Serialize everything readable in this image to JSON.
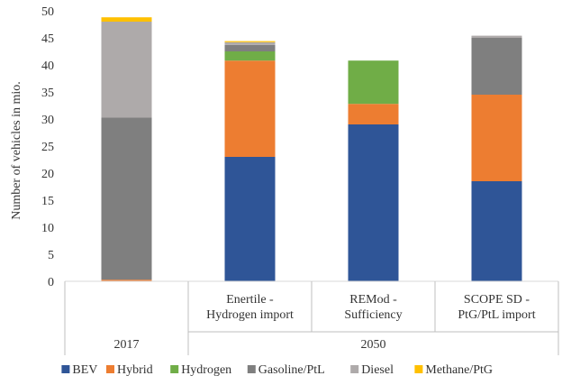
{
  "chart_data": {
    "type": "bar",
    "stacked": true,
    "ylabel": "Number of vehicles in mio.",
    "ylim": [
      0,
      50
    ],
    "yticks": [
      0,
      5,
      10,
      15,
      20,
      25,
      30,
      35,
      40,
      45,
      50
    ],
    "grid": false,
    "legend_position": "bottom",
    "groups": [
      {
        "label": "2017",
        "categories": [
          ""
        ]
      },
      {
        "label": "2050",
        "categories": [
          "Enertile -|Hydrogen import",
          "REMod -|Sufficiency",
          "SCOPE SD -|PtG/PtL import"
        ]
      }
    ],
    "categories": [
      "",
      "Enertile - Hydrogen import",
      "REMod - Sufficiency",
      "SCOPE SD - PtG/PtL import"
    ],
    "series": [
      {
        "name": "BEV",
        "color": "#2F5597",
        "values": [
          0,
          23,
          29,
          18.5
        ]
      },
      {
        "name": "Hybrid",
        "color": "#ED7D31",
        "values": [
          0.3,
          17.8,
          3.8,
          16
        ]
      },
      {
        "name": "Hydrogen",
        "color": "#70AD47",
        "values": [
          0,
          1.7,
          8,
          0
        ]
      },
      {
        "name": "Gasoline/PtL",
        "color": "#7F7F7F",
        "values": [
          30,
          1.2,
          0,
          10.5
        ]
      },
      {
        "name": "Diesel",
        "color": "#AEAAAA",
        "values": [
          17.7,
          0.5,
          0,
          0.4
        ]
      },
      {
        "name": "Methane/PtG",
        "color": "#FFC000",
        "values": [
          0.8,
          0.2,
          0,
          0
        ]
      }
    ]
  }
}
